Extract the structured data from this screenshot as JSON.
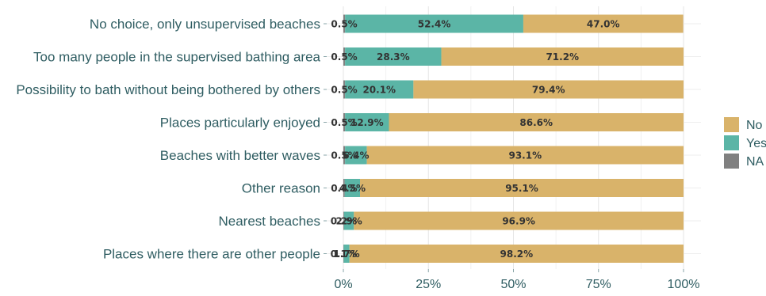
{
  "chart_data": {
    "type": "bar",
    "orientation": "horizontal",
    "stacked": true,
    "categories": [
      "No choice, only unsupervised beaches",
      "Too many people in the supervised bathing area",
      "Possibility to bath without being bothered by others",
      "Places particularly enjoyed",
      "Beaches with better waves",
      "Other reason",
      "Nearest beaches",
      "Places where there are other people"
    ],
    "series": [
      {
        "name": "NA",
        "color": "#808080",
        "values": [
          0.5,
          0.5,
          0.5,
          0.5,
          0.5,
          0.4,
          0.2,
          0.1
        ],
        "labels": [
          "0.5%",
          "0.5%",
          "0.5%",
          "0.5%",
          "0.5%",
          "0.4%",
          "0.2%",
          "0.1%"
        ]
      },
      {
        "name": "Yes",
        "color": "#5bb5a6",
        "values": [
          52.4,
          28.3,
          20.1,
          12.9,
          6.4,
          4.5,
          2.9,
          1.7
        ],
        "labels": [
          "52.4%",
          "28.3%",
          "20.1%",
          "12.9%",
          "6.4%",
          "4.5%",
          "2.9%",
          "1.7%"
        ]
      },
      {
        "name": "No",
        "color": "#d9b36a",
        "values": [
          47.0,
          71.2,
          79.4,
          86.6,
          93.1,
          95.1,
          96.9,
          98.2
        ],
        "labels": [
          "47.0%",
          "71.2%",
          "79.4%",
          "86.6%",
          "93.1%",
          "95.1%",
          "96.9%",
          "98.2%"
        ]
      }
    ],
    "x_ticks": [
      "0%",
      "25%",
      "50%",
      "75%",
      "100%"
    ],
    "xlim": [
      0,
      100
    ],
    "legend": {
      "entries": [
        "No",
        "Yes",
        "NA"
      ],
      "position": "right"
    },
    "grid": true,
    "title": "",
    "xlabel": "",
    "ylabel": ""
  }
}
